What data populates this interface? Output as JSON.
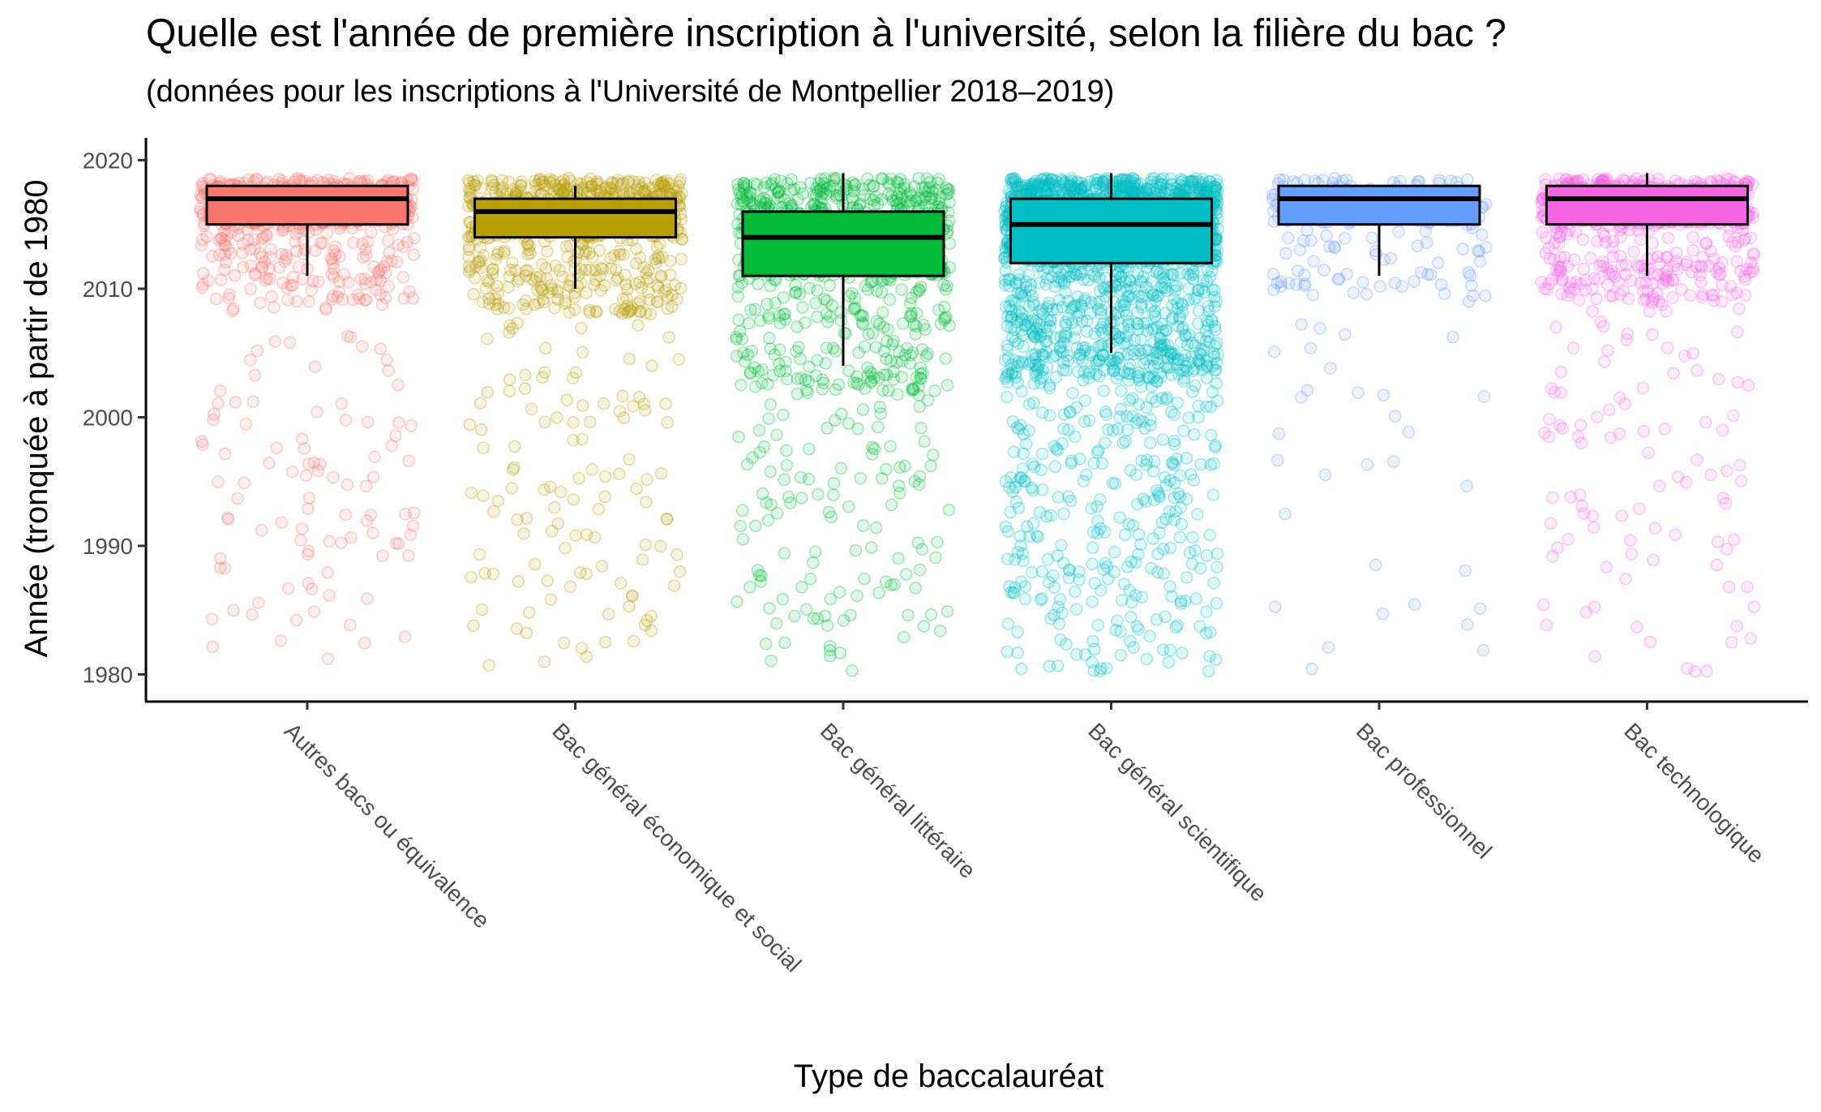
{
  "chart_data": {
    "type": "boxplot",
    "title": "Quelle est l'année de première inscription à l'université, selon la filière du bac ?",
    "subtitle": "(données pour les inscriptions à l'Université de Montpellier 2018–2019)",
    "xlabel": "Type de baccalauréat",
    "ylabel": "Année (tronquée à partir de 1980",
    "ylim": [
      1978,
      2022
    ],
    "yticks": [
      1980,
      1990,
      2000,
      2010,
      2020
    ],
    "grid": false,
    "legend": "none",
    "categories": [
      "Autres bacs ou équivalence",
      "Bac général économique et social",
      "Bac général littéraire",
      "Bac général scientifique",
      "Bac professionnel",
      "Bac technologique"
    ],
    "colors": [
      "#F8766D",
      "#B79F00",
      "#00BA38",
      "#00BFC4",
      "#619CFF",
      "#F564E3"
    ],
    "boxes": [
      {
        "whisker_low": 2011,
        "q1": 2015,
        "median": 2017,
        "q3": 2018,
        "whisker_high": 2018
      },
      {
        "whisker_low": 2010,
        "q1": 2014,
        "median": 2016,
        "q3": 2017,
        "whisker_high": 2018
      },
      {
        "whisker_low": 2004,
        "q1": 2011,
        "median": 2014,
        "q3": 2016,
        "whisker_high": 2019
      },
      {
        "whisker_low": 2005,
        "q1": 2012,
        "median": 2015,
        "q3": 2017,
        "whisker_high": 2019
      },
      {
        "whisker_low": 2011,
        "q1": 2015,
        "median": 2017,
        "q3": 2018,
        "whisker_high": 2018
      },
      {
        "whisker_low": 2011,
        "q1": 2015,
        "median": 2017,
        "q3": 2018,
        "whisker_high": 2019
      }
    ],
    "point_density": [
      1.0,
      1.2,
      1.3,
      3.2,
      0.35,
      1.1
    ]
  }
}
